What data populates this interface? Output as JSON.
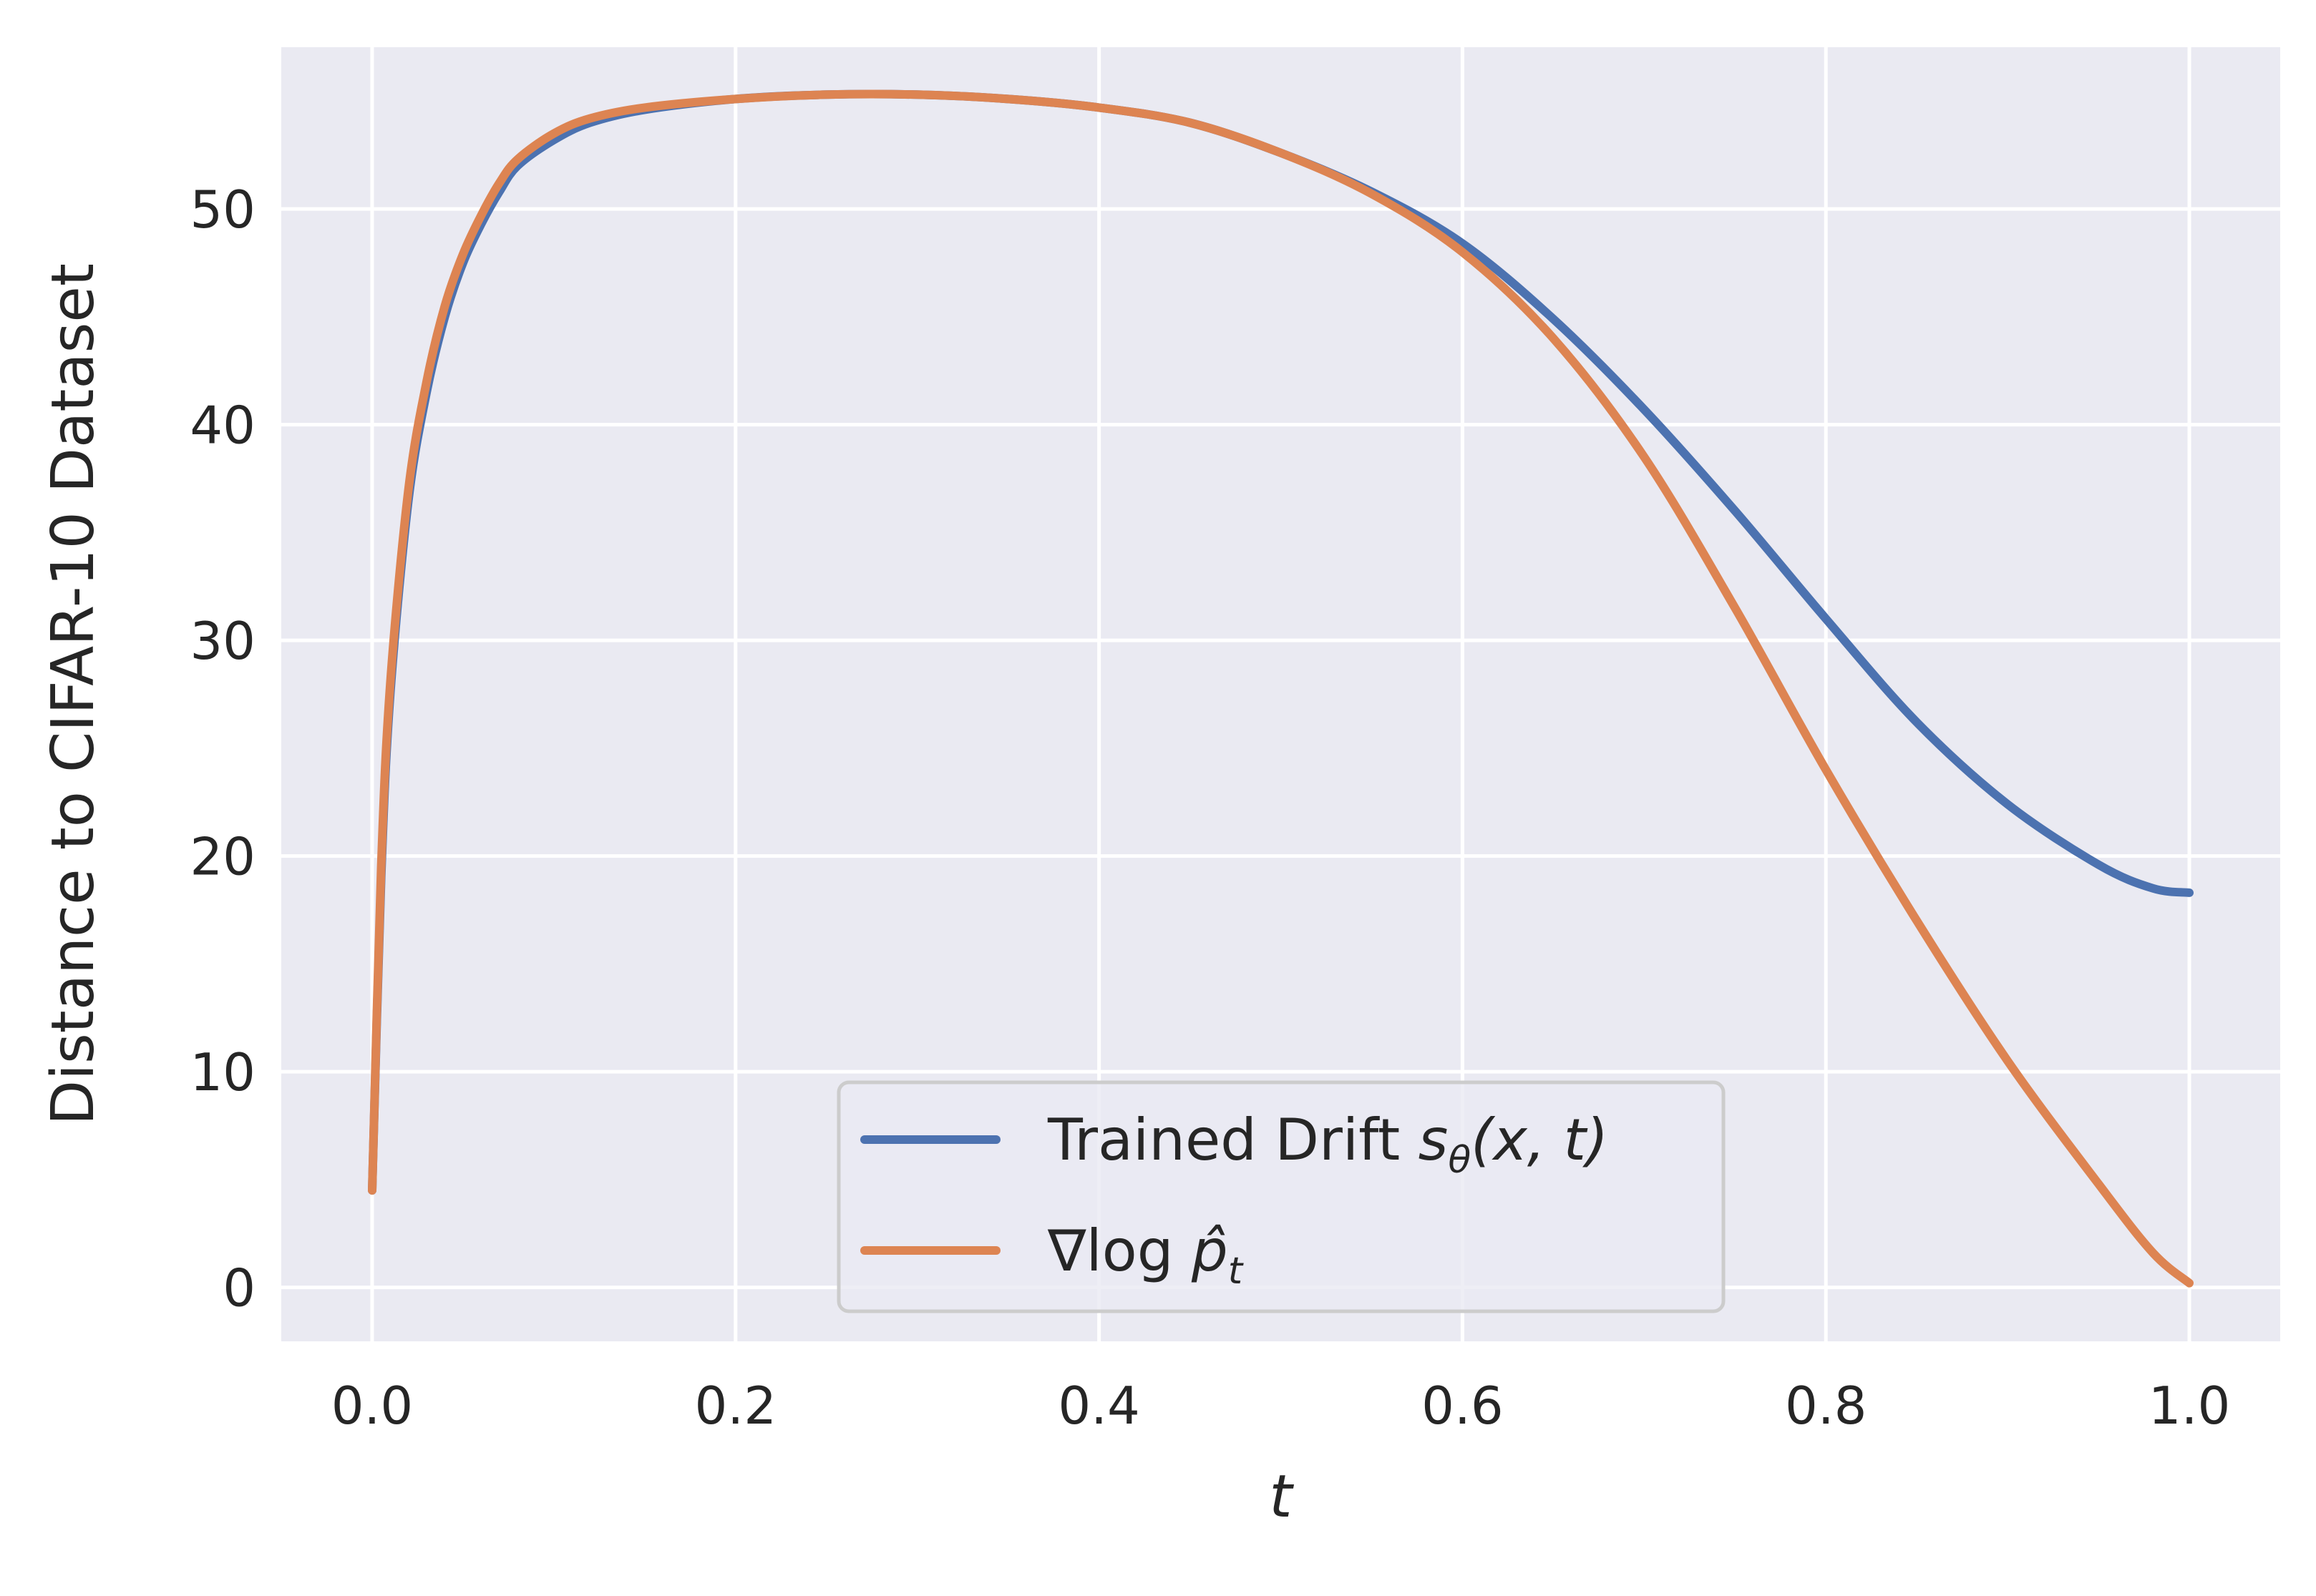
{
  "chart_data": {
    "type": "line",
    "xlabel": "t",
    "ylabel": "Distance to CIFAR-10 Dataset",
    "xlim": [
      -0.05,
      1.05
    ],
    "ylim": [
      -2.5,
      57.5
    ],
    "xticks": [
      0.0,
      0.2,
      0.4,
      0.6,
      0.8,
      1.0
    ],
    "xtick_labels": [
      "0.0",
      "0.2",
      "0.4",
      "0.6",
      "0.8",
      "1.0"
    ],
    "yticks": [
      0,
      10,
      20,
      30,
      40,
      50
    ],
    "ytick_labels": [
      "0",
      "10",
      "20",
      "30",
      "40",
      "50"
    ],
    "grid": true,
    "background": "#eaeaf2",
    "legend_position": "lower center",
    "series": [
      {
        "name": "Trained Drift s_θ(x, t)",
        "legend": {
          "prefix": "Trained Drift ",
          "base": "s",
          "sub": "θ",
          "args": "(x, t)"
        },
        "color": "#4c72b0",
        "x": [
          0.0,
          0.005,
          0.01,
          0.02,
          0.03,
          0.04,
          0.05,
          0.06,
          0.07,
          0.08,
          0.1,
          0.12,
          0.15,
          0.2,
          0.25,
          0.3,
          0.35,
          0.4,
          0.45,
          0.5,
          0.55,
          0.6,
          0.65,
          0.7,
          0.75,
          0.8,
          0.85,
          0.9,
          0.95,
          0.98,
          1.0
        ],
        "y": [
          4.5,
          19.0,
          27.5,
          36.5,
          41.5,
          45.0,
          47.5,
          49.3,
          50.8,
          52.0,
          53.2,
          54.0,
          54.6,
          55.1,
          55.3,
          55.3,
          55.1,
          54.7,
          54.0,
          52.6,
          50.8,
          48.4,
          44.9,
          40.7,
          36.0,
          31.0,
          26.2,
          22.4,
          19.6,
          18.5,
          18.3
        ]
      },
      {
        "name": "∇log p̂_t",
        "legend": {
          "prefix": "∇log ",
          "base": "p̂",
          "sub": "t",
          "args": ""
        },
        "color": "#dd8452",
        "x": [
          0.0,
          0.005,
          0.01,
          0.02,
          0.03,
          0.04,
          0.05,
          0.06,
          0.07,
          0.08,
          0.1,
          0.12,
          0.15,
          0.2,
          0.25,
          0.3,
          0.35,
          0.4,
          0.45,
          0.5,
          0.55,
          0.6,
          0.65,
          0.7,
          0.75,
          0.8,
          0.85,
          0.9,
          0.95,
          0.98,
          1.0
        ],
        "y": [
          4.5,
          19.5,
          28.0,
          37.0,
          42.0,
          45.5,
          47.9,
          49.7,
          51.2,
          52.3,
          53.5,
          54.2,
          54.7,
          55.1,
          55.3,
          55.3,
          55.1,
          54.7,
          54.0,
          52.6,
          50.7,
          48.0,
          44.0,
          38.5,
          31.5,
          24.0,
          17.0,
          10.5,
          4.8,
          1.6,
          0.2
        ]
      }
    ]
  }
}
